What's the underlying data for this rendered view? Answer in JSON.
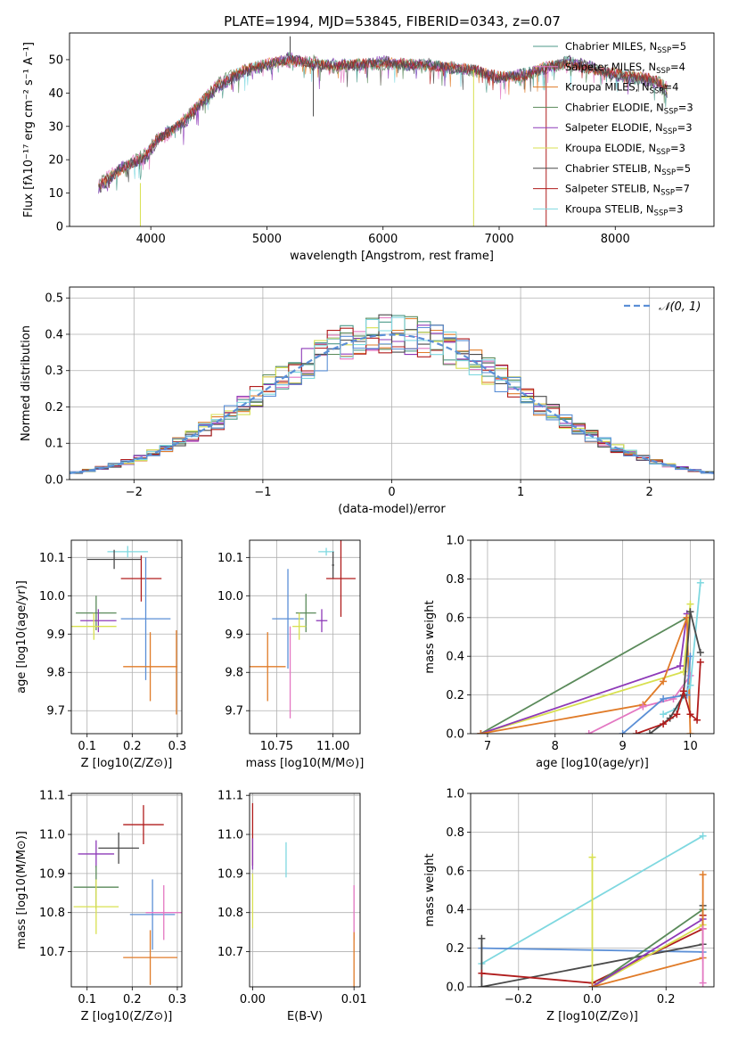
{
  "figure": {
    "title": "PLATE=1994, MJD=53845, FIBERID=0343, z=0.07"
  },
  "colors": {
    "Chabrier MILES": "#4c9a8a",
    "Salpeter MILES": "#e377c2",
    "Kroupa MILES": "#e07b28",
    "Chabrier ELODIE": "#5a8a5a",
    "Salpeter ELODIE": "#8e3ab8",
    "Kroupa ELODIE": "#d8e050",
    "Chabrier STELIB": "#4a4a4a",
    "Salpeter STELIB": "#b01c1c",
    "Kroupa STELIB": "#7fd8e0",
    "extra_blue": "#5b8fd6",
    "normal_curve": "#5b8fd6"
  },
  "chart_data": [
    {
      "id": "spectrum",
      "type": "line",
      "xlabel": "wavelength [Angstrom, rest frame]",
      "ylabel": "Flux [fλ10⁻¹⁷ erg cm⁻² s⁻¹ A⁻¹]",
      "xlim": [
        3300,
        8850
      ],
      "ylim": [
        0,
        58
      ],
      "xticks": [
        4000,
        5000,
        6000,
        7000,
        8000
      ],
      "yticks": [
        0,
        10,
        20,
        30,
        40,
        50
      ],
      "legend_position": "top-right",
      "legend": [
        "Chabrier MILES, N_SSP=5",
        "Salpeter MILES, N_SSP=4",
        "Kroupa MILES, N_SSP=4",
        "Chabrier ELODIE, N_SSP=3",
        "Salpeter ELODIE, N_SSP=3",
        "Kroupa ELODIE, N_SSP=3",
        "Chabrier STELIB, N_SSP=5",
        "Salpeter STELIB, N_SSP=7",
        "Kroupa STELIB, N_SSP=3"
      ],
      "legend_labels": [
        {
          "main": "Chabrier MILES, N",
          "sub": "SSP",
          "tail": "=5"
        },
        {
          "main": "Salpeter MILES, N",
          "sub": "SSP",
          "tail": "=4"
        },
        {
          "main": "Kroupa MILES, N",
          "sub": "SSP",
          "tail": "=4"
        },
        {
          "main": "Chabrier ELODIE, N",
          "sub": "SSP",
          "tail": "=3"
        },
        {
          "main": "Salpeter ELODIE, N",
          "sub": "SSP",
          "tail": "=3"
        },
        {
          "main": "Kroupa ELODIE, N",
          "sub": "SSP",
          "tail": "=3"
        },
        {
          "main": "Chabrier STELIB, N",
          "sub": "SSP",
          "tail": "=5"
        },
        {
          "main": "Salpeter STELIB, N",
          "sub": "SSP",
          "tail": "=7"
        },
        {
          "main": "Kroupa STELIB, N",
          "sub": "SSP",
          "tail": "=3"
        }
      ],
      "series": [
        {
          "name": "Chabrier MILES, N_SSP=5",
          "color_key": "Chabrier MILES",
          "x": [
            3550,
            3650,
            3750,
            3850,
            3950,
            4050,
            4150,
            4300,
            4450,
            4600,
            4800,
            5000,
            5200,
            5400,
            5600,
            5800,
            6000,
            6200,
            6400,
            6600,
            6800,
            7000,
            7200,
            7400,
            7600,
            7800,
            8000,
            8200,
            8350,
            8450
          ],
          "y": [
            12,
            15,
            17,
            19,
            21,
            26,
            28,
            32,
            38,
            43,
            47,
            49,
            50,
            49,
            48,
            49,
            49,
            49,
            48,
            48,
            47,
            45,
            45,
            48,
            49,
            47,
            46,
            45,
            44,
            41
          ]
        },
        {
          "name": "Chabrier STELIB, N_SSP=5",
          "color_key": "Chabrier STELIB",
          "x": [
            3550,
            3650,
            3750,
            3850,
            3950,
            4050,
            4150,
            4300,
            4450,
            4600,
            4800,
            5000,
            5200,
            5400,
            5600,
            5800,
            6000,
            6200,
            6400,
            6600,
            6800,
            7000,
            7200,
            7400,
            7600,
            7800,
            8000,
            8200,
            8350,
            8450
          ],
          "y": [
            11,
            14,
            18,
            19,
            20,
            25,
            29,
            31,
            37,
            42,
            46,
            48,
            51,
            48,
            49,
            48,
            50,
            48,
            49,
            47,
            47,
            44,
            46,
            47,
            50,
            48,
            45,
            44,
            43,
            40
          ]
        },
        {
          "name": "Kroupa STELIB, N_SSP=3",
          "color_key": "Kroupa STELIB",
          "x": [
            3550,
            3650,
            3750,
            3850,
            3950,
            4050,
            4150,
            4300,
            4450,
            4600,
            4800,
            5000,
            5200,
            5400,
            5600,
            5800,
            6000,
            6200,
            6400,
            6600,
            6800,
            7000,
            7200,
            7400,
            7600,
            7800,
            8000,
            8200,
            8350,
            8450
          ],
          "y": [
            13,
            16,
            17,
            20,
            22,
            27,
            27,
            33,
            38,
            44,
            47,
            49,
            49,
            50,
            47,
            49,
            48,
            49,
            48,
            48,
            46,
            45,
            44,
            48,
            48,
            47,
            46,
            45,
            44,
            42
          ]
        }
      ],
      "spikes": [
        {
          "x": 3910,
          "y0": 13,
          "y1": 0,
          "color_key": "Kroupa ELODIE"
        },
        {
          "x": 5200,
          "y0": 51,
          "y1": 57,
          "color_key": "Chabrier STELIB"
        },
        {
          "x": 5400,
          "y0": 48,
          "y1": 33,
          "color_key": "Chabrier STELIB"
        },
        {
          "x": 6780,
          "y0": 47,
          "y1": 0,
          "color_key": "Kroupa ELODIE"
        },
        {
          "x": 7405,
          "y0": 48,
          "y1": 0,
          "color_key": "Salpeter STELIB"
        }
      ]
    },
    {
      "id": "residuals",
      "type": "step",
      "xlabel": "(data-model)/error",
      "ylabel": "Normed distribution",
      "xlim": [
        -2.5,
        2.5
      ],
      "ylim": [
        0,
        0.53
      ],
      "xticks": [
        -2,
        -1,
        0,
        1,
        2
      ],
      "yticks": [
        0.0,
        0.1,
        0.2,
        0.3,
        0.4,
        0.5
      ],
      "grid": true,
      "legend_position": "top-right",
      "legend": [
        "N(0,1)"
      ],
      "normal_curve": {
        "name": "N(0,1)",
        "mean": 0,
        "sigma": 1
      },
      "bins": {
        "start": -2.5,
        "width": 0.1,
        "count": 50
      }
    },
    {
      "id": "age_vs_Z",
      "type": "errorbar",
      "xlabel": "Z [log10(Z/Z⊙)]",
      "ylabel": "age  [log10(age/yr)]",
      "xlim": [
        0.065,
        0.31
      ],
      "ylim": [
        9.64,
        10.145
      ],
      "xticks": [
        0.1,
        0.2,
        0.3
      ],
      "yticks": [
        9.7,
        9.8,
        9.9,
        10.0,
        10.1
      ],
      "grid": true,
      "points": [
        {
          "color_key": "Kroupa STELIB",
          "x": 0.19,
          "xerr": 0.045,
          "y": 10.115,
          "yerr": 0.015
        },
        {
          "color_key": "Chabrier STELIB",
          "x": 0.16,
          "xerr": 0.06,
          "y": 10.095,
          "yerr": 0.025
        },
        {
          "color_key": "Salpeter STELIB",
          "x": 0.22,
          "xerr": 0.045,
          "y": 10.045,
          "yerr": 0.06
        },
        {
          "color_key": "Chabrier ELODIE",
          "x": 0.12,
          "xerr": 0.045,
          "y": 9.955,
          "yerr": 0.045
        },
        {
          "color_key": "extra_blue",
          "x": 0.23,
          "xerr": 0.055,
          "y": 9.94,
          "yerr": 0.16
        },
        {
          "color_key": "Salpeter ELODIE",
          "x": 0.125,
          "xerr": 0.04,
          "y": 9.935,
          "yerr": 0.03
        },
        {
          "color_key": "Kroupa ELODIE",
          "x": 0.115,
          "xerr": 0.05,
          "y": 9.92,
          "yerr": 0.035
        },
        {
          "color_key": "Kroupa MILES",
          "x": 0.24,
          "xerr": 0.06,
          "y": 9.815,
          "yerr": 0.09
        },
        {
          "color_key": "Kroupa MILES",
          "x": 0.298,
          "xerr": 0.0,
          "y": 9.8,
          "yerr": 0.11
        }
      ]
    },
    {
      "id": "age_vs_mass",
      "type": "errorbar",
      "xlabel": "mass [log10(M/M⊙)]",
      "ylabel": "",
      "xlim": [
        10.63,
        11.12
      ],
      "ylim": [
        9.64,
        10.145
      ],
      "xticks": [
        10.75,
        11.0
      ],
      "yticks": [
        9.7,
        9.8,
        9.9,
        10.0,
        10.1
      ],
      "grid": true,
      "points": [
        {
          "color_key": "Kroupa STELIB",
          "x": 10.97,
          "xerr": 0.035,
          "y": 10.115,
          "yerr": 0.01
        },
        {
          "color_key": "Chabrier STELIB",
          "x": 11.0,
          "xerr": 0.005,
          "y": 10.08,
          "yerr": 0.035
        },
        {
          "color_key": "Salpeter STELIB",
          "x": 11.035,
          "xerr": 0.065,
          "y": 10.045,
          "yerr": 0.1
        },
        {
          "color_key": "Chabrier ELODIE",
          "x": 10.88,
          "xerr": 0.045,
          "y": 9.955,
          "yerr": 0.05
        },
        {
          "color_key": "extra_blue",
          "x": 10.8,
          "xerr": 0.07,
          "y": 9.94,
          "yerr": 0.13
        },
        {
          "color_key": "Salpeter ELODIE",
          "x": 10.95,
          "xerr": 0.025,
          "y": 9.935,
          "yerr": 0.03
        },
        {
          "color_key": "Kroupa ELODIE",
          "x": 10.85,
          "xerr": 0.03,
          "y": 9.92,
          "yerr": 0.035
        },
        {
          "color_key": "Kroupa MILES",
          "x": 10.71,
          "xerr": 0.08,
          "y": 9.815,
          "yerr": 0.09
        },
        {
          "color_key": "Salpeter MILES",
          "x": 10.81,
          "xerr": 0.0,
          "y": 9.8,
          "yerr": 0.12
        }
      ]
    },
    {
      "id": "weight_vs_age",
      "type": "line",
      "xlabel": "age  [log10(age/yr)]",
      "ylabel": "mass weight",
      "xlim": [
        6.75,
        10.35
      ],
      "ylim": [
        0,
        1.0
      ],
      "xticks": [
        7,
        8,
        9,
        10
      ],
      "yticks": [
        0.0,
        0.2,
        0.4,
        0.6,
        0.8,
        1.0
      ],
      "grid": true,
      "series": [
        {
          "color_key": "Chabrier ELODIE",
          "x": [
            6.9,
            9.95
          ],
          "y": [
            0.0,
            0.6
          ]
        },
        {
          "color_key": "Kroupa ELODIE",
          "x": [
            6.9,
            9.9,
            10.0
          ],
          "y": [
            0.0,
            0.32,
            0.67
          ]
        },
        {
          "color_key": "Salpeter ELODIE",
          "x": [
            6.9,
            9.85,
            9.95
          ],
          "y": [
            0.0,
            0.35,
            0.62
          ]
        },
        {
          "color_key": "Kroupa MILES",
          "x": [
            6.9,
            9.3,
            9.6,
            9.95,
            10.0
          ],
          "y": [
            0.0,
            0.15,
            0.27,
            0.6,
            0.0
          ]
        },
        {
          "color_key": "Salpeter MILES",
          "x": [
            8.5,
            9.3,
            9.75,
            10.0
          ],
          "y": [
            0.0,
            0.14,
            0.18,
            0.3
          ]
        },
        {
          "color_key": "extra_blue",
          "x": [
            9.0,
            9.6,
            9.95,
            10.0
          ],
          "y": [
            0.0,
            0.18,
            0.2,
            0.4
          ]
        },
        {
          "color_key": "Kroupa STELIB",
          "x": [
            9.6,
            9.8,
            10.0,
            10.15
          ],
          "y": [
            0.1,
            0.13,
            0.25,
            0.78
          ]
        },
        {
          "color_key": "Chabrier STELIB",
          "x": [
            9.4,
            9.7,
            9.9,
            10.0,
            10.15
          ],
          "y": [
            0.0,
            0.08,
            0.2,
            0.63,
            0.42
          ]
        },
        {
          "color_key": "Salpeter STELIB",
          "x": [
            9.2,
            9.6,
            9.8,
            9.9,
            10.0,
            10.1,
            10.15
          ],
          "y": [
            0.0,
            0.05,
            0.1,
            0.22,
            0.1,
            0.07,
            0.37
          ]
        }
      ]
    },
    {
      "id": "mass_vs_Z",
      "type": "errorbar",
      "xlabel": "Z [log10(Z/Z⊙)]",
      "ylabel": "mass [log10(M/M⊙)]",
      "xlim": [
        0.065,
        0.31
      ],
      "ylim": [
        10.61,
        11.105
      ],
      "xticks": [
        0.1,
        0.2,
        0.3
      ],
      "yticks": [
        10.7,
        10.8,
        10.9,
        11.0,
        11.1
      ],
      "grid": true,
      "points": [
        {
          "color_key": "Salpeter STELIB",
          "x": 0.225,
          "xerr": 0.045,
          "y": 11.025,
          "yerr": 0.05
        },
        {
          "color_key": "Chabrier STELIB",
          "x": 0.17,
          "xerr": 0.045,
          "y": 10.965,
          "yerr": 0.04
        },
        {
          "color_key": "Salpeter ELODIE",
          "x": 0.12,
          "xerr": 0.04,
          "y": 10.95,
          "yerr": 0.035
        },
        {
          "color_key": "Chabrier ELODIE",
          "x": 0.12,
          "xerr": 0.05,
          "y": 10.865,
          "yerr": 0.055
        },
        {
          "color_key": "Kroupa ELODIE",
          "x": 0.12,
          "xerr": 0.05,
          "y": 10.815,
          "yerr": 0.07
        },
        {
          "color_key": "extra_blue",
          "x": 0.245,
          "xerr": 0.05,
          "y": 10.795,
          "yerr": 0.09
        },
        {
          "color_key": "Salpeter MILES",
          "x": 0.27,
          "xerr": 0.04,
          "y": 10.8,
          "yerr": 0.07
        },
        {
          "color_key": "Kroupa MILES",
          "x": 0.24,
          "xerr": 0.06,
          "y": 10.685,
          "yerr": 0.07
        }
      ]
    },
    {
      "id": "mass_vs_EBV",
      "type": "errorbar",
      "xlabel": "E(B-V)",
      "ylabel": "",
      "xlim": [
        -0.0003,
        0.0106
      ],
      "ylim": [
        10.61,
        11.105
      ],
      "xticks": [
        0.0,
        0.01
      ],
      "xtick_labels": [
        "0.00",
        "0.01"
      ],
      "yticks": [
        10.7,
        10.8,
        10.9,
        11.0,
        11.1
      ],
      "grid": true,
      "points": [
        {
          "color_key": "Salpeter STELIB",
          "x": 0.0,
          "xerr": 0.0,
          "y": 11.0,
          "yerr": 0.08
        },
        {
          "color_key": "Salpeter ELODIE",
          "x": 0.0,
          "xerr": 0.0,
          "y": 10.95,
          "yerr": 0.04
        },
        {
          "color_key": "Kroupa ELODIE",
          "x": 0.0,
          "xerr": 0.0,
          "y": 10.83,
          "yerr": 0.07
        },
        {
          "color_key": "Kroupa STELIB",
          "x": 0.0033,
          "xerr": 0.0,
          "y": 10.935,
          "yerr": 0.045
        },
        {
          "color_key": "Salpeter MILES",
          "x": 0.01,
          "xerr": 0.0,
          "y": 10.8,
          "yerr": 0.07
        },
        {
          "color_key": "Kroupa MILES",
          "x": 0.01,
          "xerr": 0.0,
          "y": 10.68,
          "yerr": 0.07
        }
      ]
    },
    {
      "id": "weight_vs_Z",
      "type": "line",
      "xlabel": "Z [log10(Z/Z⊙)]",
      "ylabel": "mass weight",
      "xlim": [
        -0.33,
        0.33
      ],
      "ylim": [
        0,
        1.0
      ],
      "xticks": [
        -0.2,
        0.0,
        0.2
      ],
      "xtick_labels": [
        "−0.2",
        "0.0",
        "0.2"
      ],
      "yticks": [
        0.0,
        0.2,
        0.4,
        0.6,
        0.8,
        1.0
      ],
      "grid": true,
      "series": [
        {
          "color_key": "Kroupa STELIB",
          "x": [
            -0.3,
            0.3
          ],
          "y": [
            0.12,
            0.78
          ]
        },
        {
          "color_key": "extra_blue",
          "x": [
            -0.3,
            0.3
          ],
          "y": [
            0.2,
            0.18
          ]
        },
        {
          "color_key": "Chabrier STELIB",
          "x": [
            -0.3,
            -0.3,
            0.3,
            0.3
          ],
          "y": [
            0.25,
            0.0,
            0.22,
            0.42
          ]
        },
        {
          "color_key": "Salpeter STELIB",
          "x": [
            -0.3,
            0.0,
            0.3,
            0.3
          ],
          "y": [
            0.07,
            0.02,
            0.3,
            0.37
          ]
        },
        {
          "color_key": "Chabrier ELODIE",
          "x": [
            0.0,
            0.3
          ],
          "y": [
            0.0,
            0.4
          ]
        },
        {
          "color_key": "Kroupa ELODIE",
          "x": [
            0.0,
            0.0,
            0.3
          ],
          "y": [
            0.67,
            0.0,
            0.32
          ]
        },
        {
          "color_key": "Salpeter ELODIE",
          "x": [
            0.0,
            0.3
          ],
          "y": [
            0.0,
            0.35
          ]
        },
        {
          "color_key": "Kroupa MILES",
          "x": [
            0.0,
            0.3,
            0.3
          ],
          "y": [
            0.0,
            0.15,
            0.58
          ]
        },
        {
          "color_key": "Salpeter MILES",
          "x": [
            0.3,
            0.3
          ],
          "y": [
            0.02,
            0.3
          ]
        }
      ]
    }
  ]
}
